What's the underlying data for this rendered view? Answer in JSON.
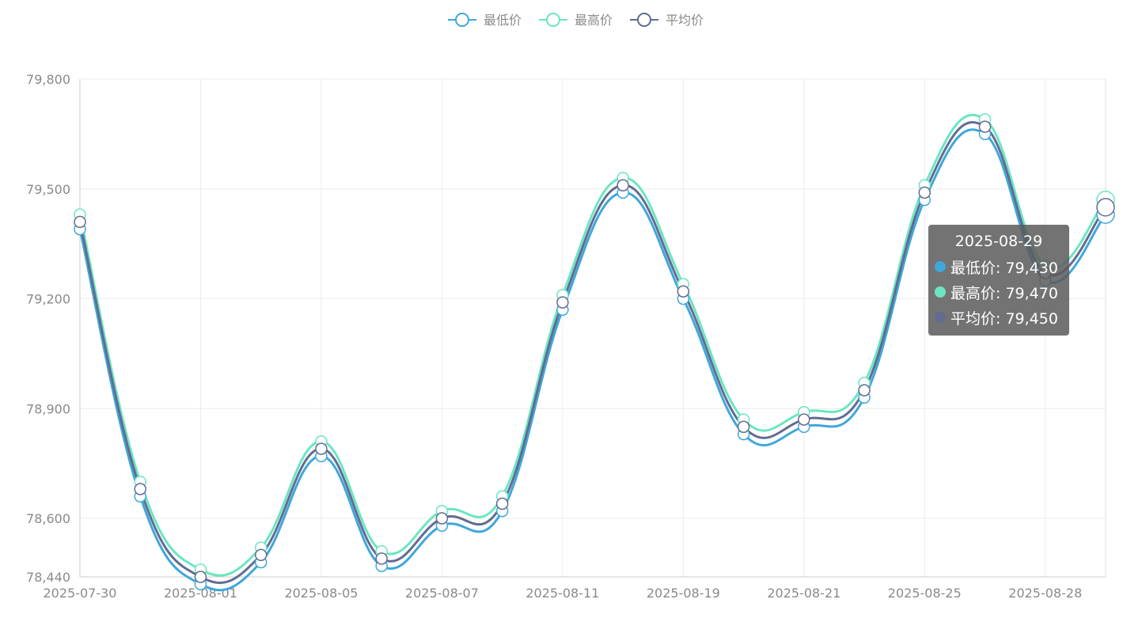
{
  "legend": [
    {
      "name": "最低价",
      "color": "#3fa7dc"
    },
    {
      "name": "最高价",
      "color": "#6be6c1"
    },
    {
      "name": "平均价",
      "color": "#626c91"
    }
  ],
  "tooltip": {
    "title": "2025-08-29",
    "rows": [
      {
        "label": "最低价: 79,430",
        "color": "#3fa7dc"
      },
      {
        "label": "最高价: 79,470",
        "color": "#6be6c1"
      },
      {
        "label": "平均价: 79,450",
        "color": "#626c91"
      }
    ]
  },
  "chart_data": {
    "type": "line",
    "x": [
      "2025-07-30",
      "2025-07-31",
      "2025-08-01",
      "2025-08-04",
      "2025-08-05",
      "2025-08-06",
      "2025-08-07",
      "2025-08-08",
      "2025-08-11",
      "2025-08-12",
      "2025-08-19",
      "2025-08-20",
      "2025-08-21",
      "2025-08-22",
      "2025-08-25",
      "2025-08-26",
      "2025-08-28",
      "2025-08-29"
    ],
    "x_tick_labels": [
      "2025-07-30",
      "2025-08-01",
      "2025-08-05",
      "2025-08-07",
      "2025-08-11",
      "2025-08-19",
      "2025-08-21",
      "2025-08-25",
      "2025-08-28"
    ],
    "series": [
      {
        "name": "最低价",
        "color": "#3fa7dc",
        "values": [
          79390,
          78660,
          78420,
          78480,
          78770,
          78470,
          78580,
          78620,
          79170,
          79490,
          79200,
          78830,
          78850,
          78930,
          79470,
          79650,
          79250,
          79430
        ]
      },
      {
        "name": "最高价",
        "color": "#6be6c1",
        "values": [
          79430,
          78700,
          78460,
          78520,
          78810,
          78510,
          78620,
          78660,
          79210,
          79530,
          79240,
          78870,
          78890,
          78970,
          79510,
          79690,
          79290,
          79470
        ]
      },
      {
        "name": "平均价",
        "color": "#626c91",
        "values": [
          79410,
          78680,
          78440,
          78500,
          78790,
          78490,
          78600,
          78640,
          79190,
          79510,
          79220,
          78850,
          78870,
          78950,
          79490,
          79670,
          79270,
          79450
        ]
      }
    ],
    "y_ticks": [
      "78,440",
      "78,600",
      "78,900",
      "79,200",
      "79,500",
      "79,800"
    ],
    "y_tick_values": [
      78440,
      78600,
      78900,
      79200,
      79500,
      79800
    ],
    "ylim": [
      78440,
      79800
    ],
    "grid": true,
    "legend_position": "top-center",
    "highlighted_index": 17
  }
}
